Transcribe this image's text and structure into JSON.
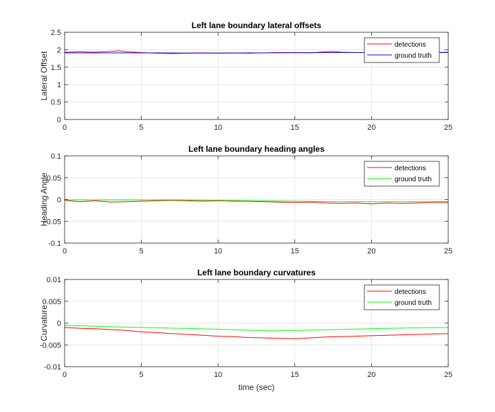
{
  "chart_data": [
    {
      "type": "line",
      "title": "Left lane boundary lateral offsets",
      "xlabel": "",
      "ylabel": "Lateral Offset",
      "xlim": [
        0,
        25
      ],
      "ylim": [
        0,
        2.5
      ],
      "xticks": [
        0,
        5,
        10,
        15,
        20,
        25
      ],
      "yticks": [
        0,
        0.5,
        1,
        1.5,
        2,
        2.5
      ],
      "ytick_labels": [
        "0",
        "0.5",
        "1",
        "1.5",
        "2",
        "2.5"
      ],
      "grid": true,
      "legend_position": "top-right",
      "series": [
        {
          "name": "detections",
          "color": "#ff0000",
          "x": [
            0,
            1,
            2,
            3,
            3.5,
            4,
            5,
            6,
            7,
            8,
            9,
            10,
            11,
            12,
            13,
            14,
            15,
            16,
            17,
            17.5,
            18,
            19,
            20,
            21,
            22,
            23,
            24,
            25
          ],
          "y": [
            1.93,
            1.94,
            1.93,
            1.95,
            1.97,
            1.94,
            1.92,
            1.9,
            1.89,
            1.9,
            1.91,
            1.9,
            1.91,
            1.9,
            1.91,
            1.92,
            1.92,
            1.91,
            1.94,
            1.95,
            1.93,
            1.92,
            1.92,
            1.91,
            1.92,
            1.93,
            1.92,
            1.93
          ]
        },
        {
          "name": "ground truth",
          "color": "#0000ff",
          "x": [
            0,
            2.5,
            5,
            7.5,
            10,
            12.5,
            15,
            17.5,
            20,
            22.5,
            25
          ],
          "y": [
            1.91,
            1.91,
            1.91,
            1.905,
            1.905,
            1.91,
            1.915,
            1.92,
            1.92,
            1.92,
            1.92
          ]
        }
      ]
    },
    {
      "type": "line",
      "title": "Left lane boundary heading angles",
      "xlabel": "",
      "ylabel": "Heading Angle",
      "xlim": [
        0,
        25
      ],
      "ylim": [
        -0.1,
        0.1
      ],
      "xticks": [
        0,
        5,
        10,
        15,
        20,
        25
      ],
      "yticks": [
        -0.1,
        -0.05,
        0,
        0.05,
        0.1
      ],
      "ytick_labels": [
        "-0.1",
        "-0.05",
        "0",
        "0.05",
        "0.1"
      ],
      "grid": true,
      "legend_position": "top-right",
      "series": [
        {
          "name": "detections",
          "color": "#ff0000",
          "x": [
            0,
            1,
            2,
            3,
            4,
            5,
            6,
            7,
            8,
            9,
            10,
            11,
            12,
            13,
            14,
            15,
            16,
            17,
            18,
            19,
            20,
            21,
            22,
            23,
            24,
            25
          ],
          "y": [
            -0.002,
            -0.005,
            -0.003,
            -0.006,
            -0.005,
            -0.004,
            -0.003,
            -0.002,
            -0.003,
            -0.004,
            -0.003,
            -0.004,
            -0.004,
            -0.005,
            -0.006,
            -0.007,
            -0.006,
            -0.008,
            -0.009,
            -0.008,
            -0.01,
            -0.008,
            -0.009,
            -0.008,
            -0.007,
            -0.007
          ]
        },
        {
          "name": "ground truth",
          "color": "#00ff00",
          "x": [
            0,
            2.5,
            5,
            7.5,
            10,
            12.5,
            15,
            17.5,
            20,
            22.5,
            25
          ],
          "y": [
            -0.001,
            -0.001,
            -0.001,
            -0.001,
            -0.002,
            -0.003,
            -0.004,
            -0.005,
            -0.005,
            -0.005,
            -0.005
          ]
        }
      ]
    },
    {
      "type": "line",
      "title": "Left lane boundary curvatures",
      "xlabel": "time (sec)",
      "ylabel": "Curvature",
      "xlim": [
        0,
        25
      ],
      "ylim": [
        -0.01,
        0.01
      ],
      "xticks": [
        0,
        5,
        10,
        15,
        20,
        25
      ],
      "yticks": [
        -0.01,
        -0.005,
        0,
        0.005,
        0.01
      ],
      "ytick_labels": [
        "-0.01",
        "-0.005",
        "0",
        "0.005",
        "0.01"
      ],
      "grid": true,
      "legend_position": "top-right",
      "series": [
        {
          "name": "detections",
          "color": "#ff0000",
          "x": [
            0,
            1,
            2,
            3,
            4,
            5,
            6,
            7,
            8,
            9,
            10,
            11,
            12,
            13,
            14,
            15,
            16,
            17,
            18,
            19,
            20,
            21,
            22,
            23,
            24,
            25
          ],
          "y": [
            -0.001,
            -0.0012,
            -0.0013,
            -0.0015,
            -0.0017,
            -0.002,
            -0.0022,
            -0.0024,
            -0.0026,
            -0.0028,
            -0.003,
            -0.0031,
            -0.0033,
            -0.0034,
            -0.0035,
            -0.0036,
            -0.0034,
            -0.0032,
            -0.0031,
            -0.003,
            -0.0029,
            -0.0028,
            -0.0027,
            -0.0026,
            -0.0025,
            -0.0024
          ]
        },
        {
          "name": "ground truth",
          "color": "#00ff00",
          "x": [
            0,
            2.5,
            5,
            7.5,
            10,
            12.5,
            13.5,
            15,
            17.5,
            20,
            22.5,
            25
          ],
          "y": [
            -0.0005,
            -0.0008,
            -0.001,
            -0.0012,
            -0.0014,
            -0.0017,
            -0.0018,
            -0.0017,
            -0.0015,
            -0.0013,
            -0.0011,
            -0.001
          ]
        }
      ]
    }
  ]
}
